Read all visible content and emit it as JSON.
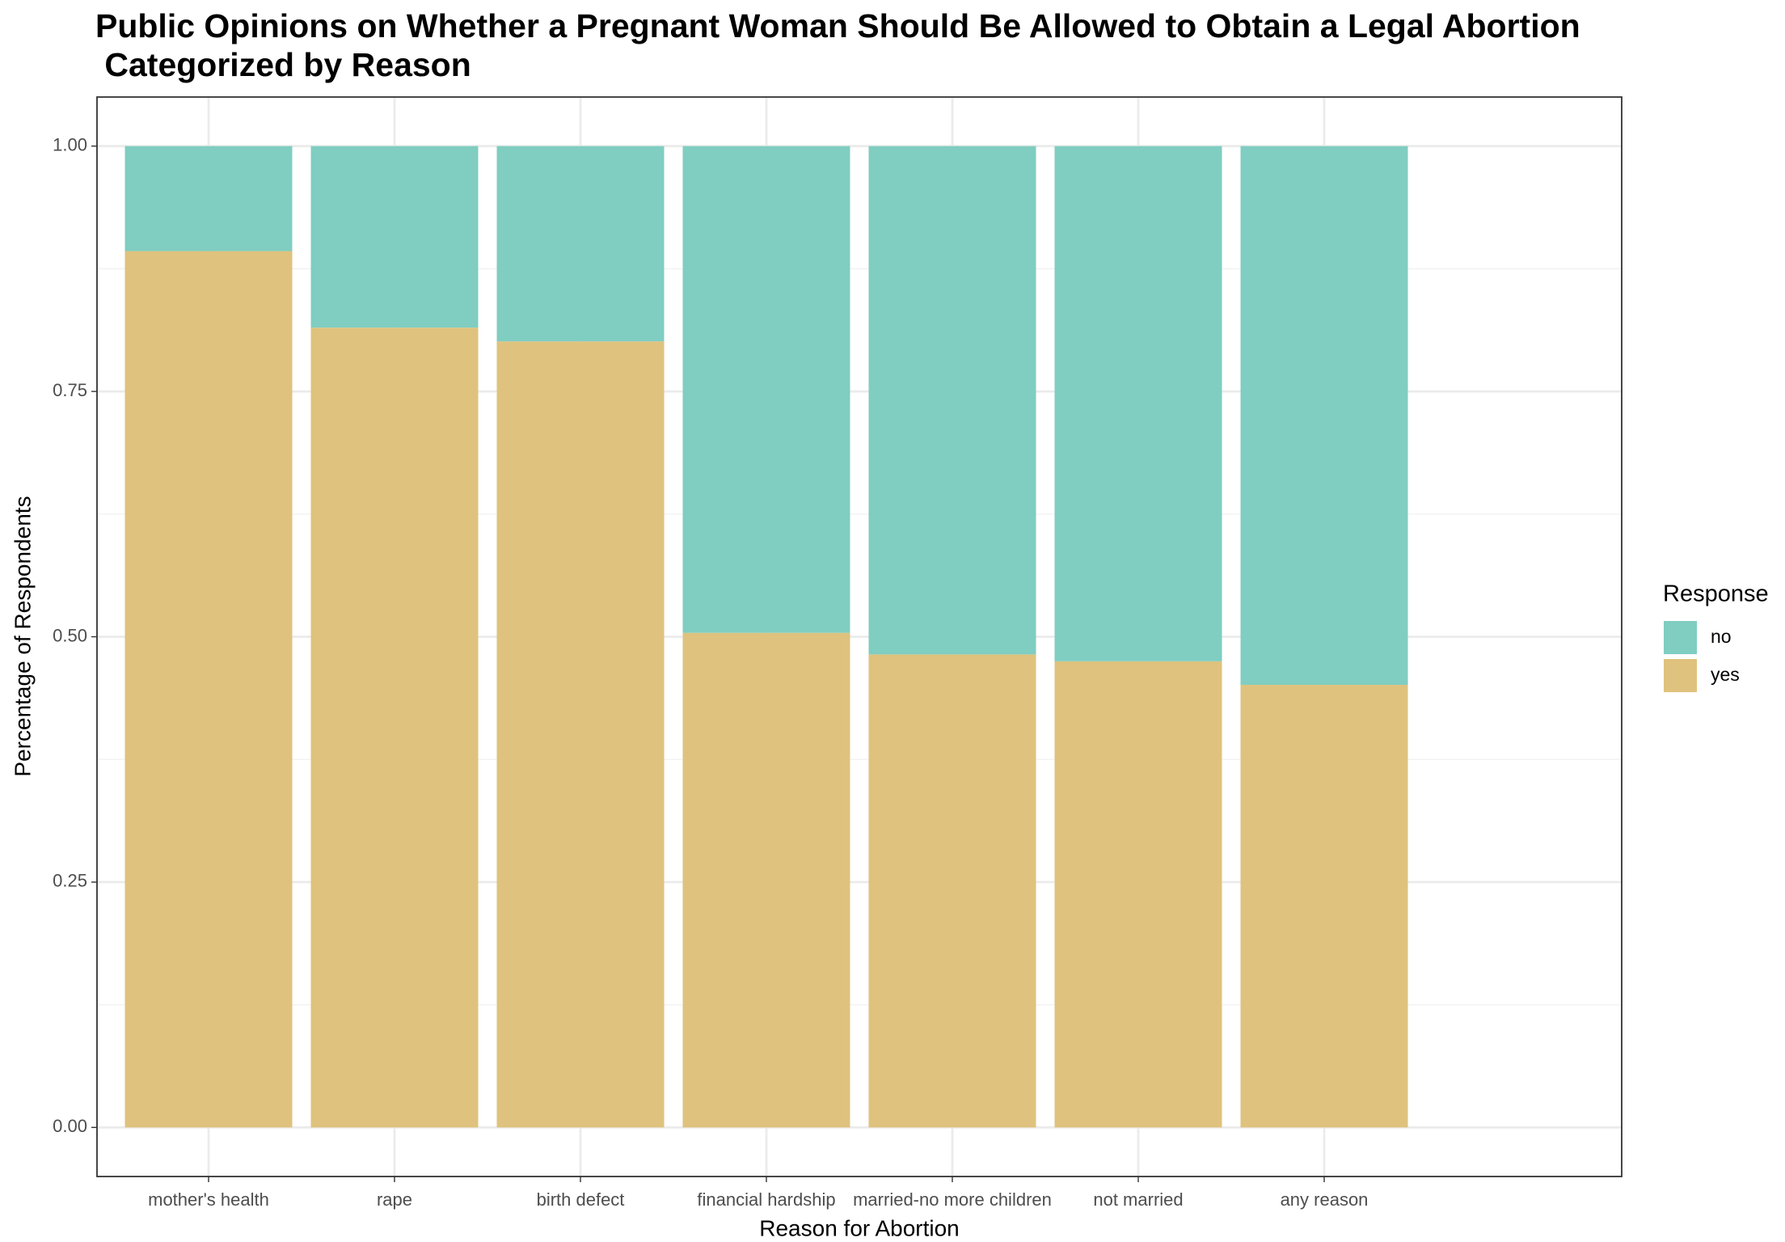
{
  "chart_data": {
    "type": "stacked_bar",
    "title": "Public Opinions on Whether a Pregnant Woman Should Be Allowed to Obtain a Legal Abortion\n Categorized by Reason",
    "x_label": "Reason for Abortion",
    "y_label": "Percentage of Respondents",
    "legend_title": "Response",
    "categories": [
      "mother's health",
      "rape",
      "birth defect",
      "financial hardship",
      "married-no more children",
      "not married",
      "any reason"
    ],
    "series": [
      {
        "name": "no",
        "color": "#80cdc1",
        "values": [
          0.107,
          0.185,
          0.199,
          0.496,
          0.518,
          0.525,
          0.549
        ]
      },
      {
        "name": "yes",
        "color": "#dfc27d",
        "values": [
          0.893,
          0.815,
          0.801,
          0.504,
          0.482,
          0.475,
          0.451
        ]
      }
    ],
    "ylim": [
      -0.05,
      1.05
    ],
    "yticks": [
      {
        "value": 0,
        "label": "0.00"
      },
      {
        "value": 0.25,
        "label": "0.25"
      },
      {
        "value": 0.5,
        "label": "0.50"
      },
      {
        "value": 0.75,
        "label": "0.75"
      },
      {
        "value": 1,
        "label": "1.00"
      }
    ],
    "grid": true
  }
}
